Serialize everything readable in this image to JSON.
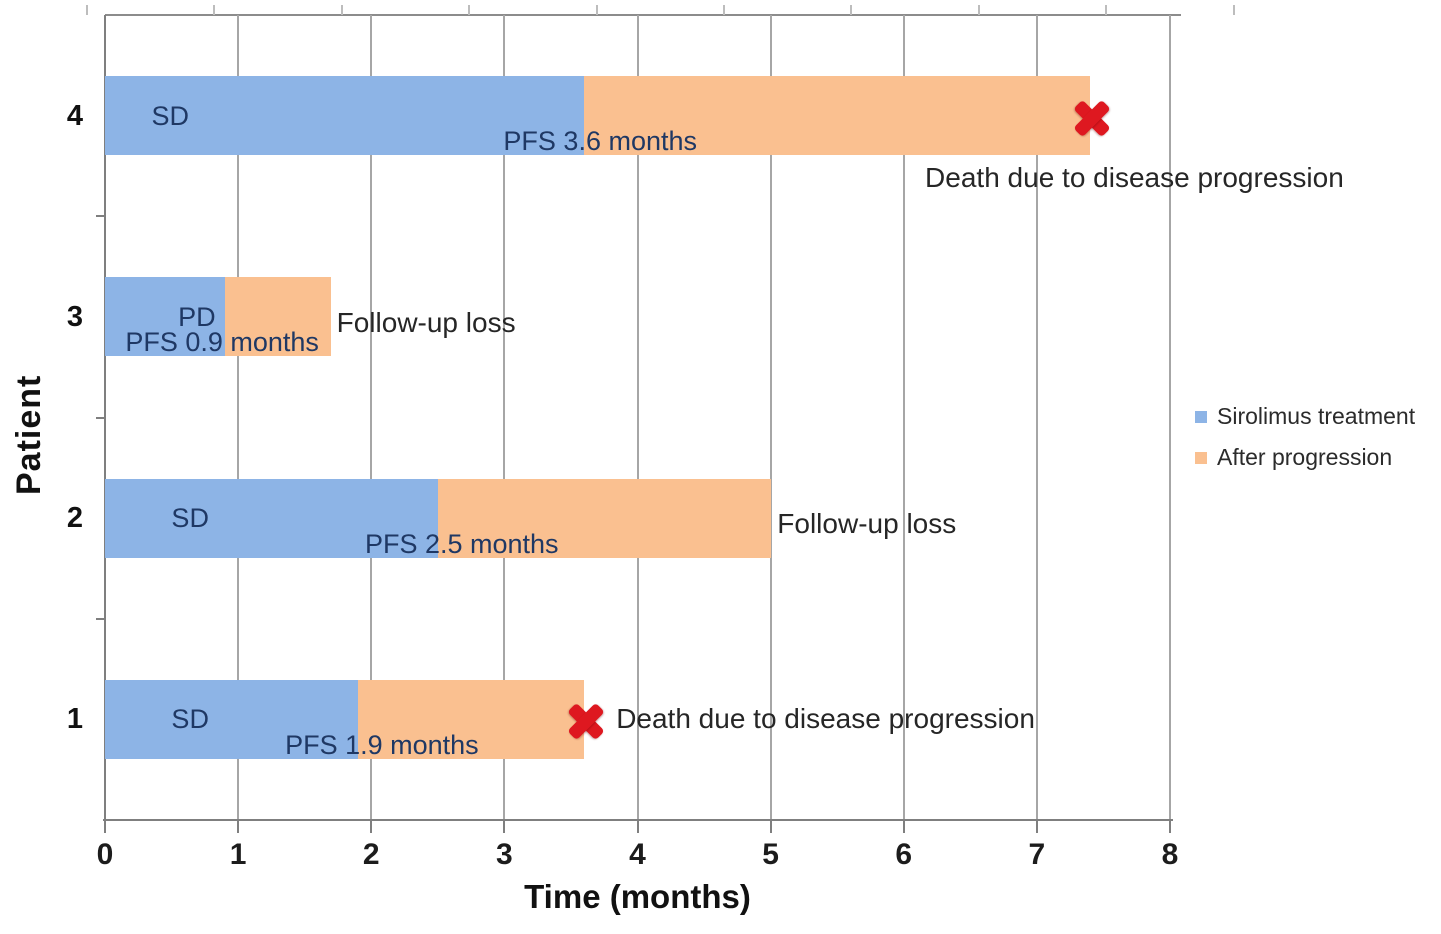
{
  "chart_data": {
    "type": "bar",
    "orientation": "horizontal",
    "stacked": true,
    "title": "",
    "xlabel": "Time (months)",
    "ylabel": "Patient",
    "xlim": [
      0,
      8
    ],
    "xticks": [
      0,
      1,
      2,
      3,
      4,
      5,
      6,
      7,
      8
    ],
    "grid": "vertical",
    "colors": {
      "sirolimus": "#8DB4E6",
      "after_progression": "#FAC090",
      "death_marker": "#DE1820",
      "gridline": "#A6A6A6",
      "axis": "#7F7F7F",
      "bar_label_text": "#1F3864",
      "annotation_text": "#262626"
    },
    "legend": {
      "position": "right",
      "items": [
        {
          "label": "Sirolimus treatment",
          "color": "#8DB4E6"
        },
        {
          "label": "After progression",
          "color": "#FAC090"
        }
      ]
    },
    "categories_top_to_bottom": [
      "4",
      "3",
      "2",
      "1"
    ],
    "series": [
      {
        "name": "Sirolimus treatment",
        "values_top_to_bottom": [
          3.6,
          0.9,
          2.5,
          1.9
        ]
      },
      {
        "name": "After progression",
        "values_top_to_bottom": [
          3.8,
          0.8,
          2.5,
          1.7
        ]
      }
    ],
    "patients": [
      {
        "patient": "4",
        "response_label": "SD",
        "pfs_label": "PFS 3.6 months",
        "sirolimus_months": 3.6,
        "after_progression_months": 3.8,
        "total_months": 7.4,
        "outcome_label": "Death due to disease progression",
        "outcome_type": "death",
        "annotation_placement": "below",
        "anchors": {
          "response_x": 0.49,
          "pfs_x": 3.72,
          "marker_x": 7.4,
          "text_x": 6.16
        }
      },
      {
        "patient": "3",
        "response_label": "PD",
        "pfs_label": "PFS 0.9 months",
        "sirolimus_months": 0.9,
        "after_progression_months": 0.8,
        "total_months": 1.7,
        "outcome_label": "Follow-up loss",
        "outcome_type": "follow-up-loss",
        "annotation_placement": "right",
        "anchors": {
          "response_x": 0.69,
          "pfs_x": 0.88,
          "text_x": 1.74
        }
      },
      {
        "patient": "2",
        "response_label": "SD",
        "pfs_label": "PFS 2.5 months",
        "sirolimus_months": 2.5,
        "after_progression_months": 2.5,
        "total_months": 5.0,
        "outcome_label": "Follow-up loss",
        "outcome_type": "follow-up-loss",
        "annotation_placement": "right",
        "anchors": {
          "response_x": 0.64,
          "pfs_x": 2.68,
          "text_x": 5.05
        }
      },
      {
        "patient": "1",
        "response_label": "SD",
        "pfs_label": "PFS 1.9 months",
        "sirolimus_months": 1.9,
        "after_progression_months": 1.7,
        "total_months": 3.6,
        "outcome_label": "Death due to disease progression",
        "outcome_type": "death",
        "annotation_placement": "right",
        "anchors": {
          "response_x": 0.64,
          "pfs_x": 2.08,
          "marker_x": 3.6,
          "text_x": 3.84
        }
      }
    ]
  }
}
